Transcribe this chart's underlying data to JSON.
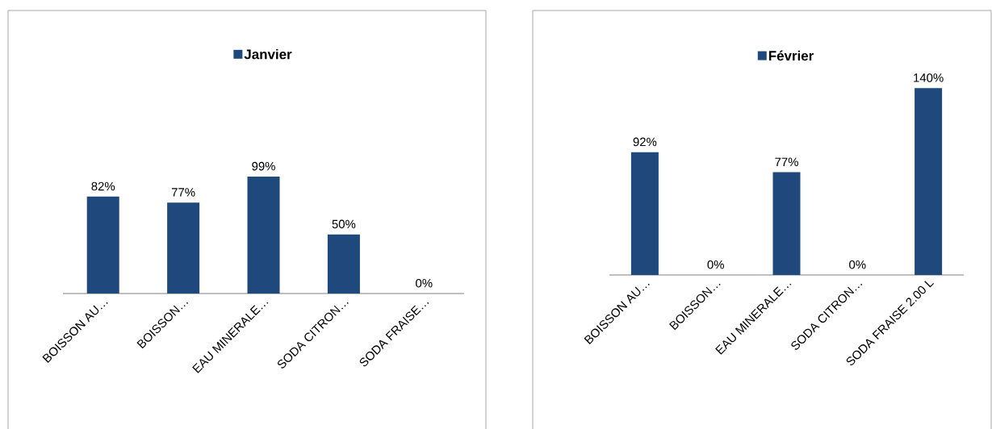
{
  "chart_data": [
    {
      "type": "bar",
      "categories": [
        "BOISSON AU…",
        "BOISSON…",
        "EAU MINERALE…",
        "SODA CITRON…",
        "SODA FRAISE…"
      ],
      "series": [
        {
          "name": "Janvier",
          "color": "#1f497d",
          "values": [
            82,
            77,
            99,
            50,
            0
          ],
          "value_labels": [
            "82%",
            "77%",
            "99%",
            "50%",
            "0%"
          ]
        }
      ],
      "legend": "top"
    },
    {
      "type": "bar",
      "categories": [
        "BOISSON AU…",
        "BOISSON…",
        "EAU MINERALE…",
        "SODA CITRON…",
        "SODA FRAISE 2.00 L"
      ],
      "series": [
        {
          "name": "Février",
          "color": "#1f497d",
          "values": [
            92,
            0,
            77,
            0,
            140
          ],
          "value_labels": [
            "92%",
            "0%",
            "77%",
            "0%",
            "140%"
          ]
        }
      ],
      "legend": "top"
    }
  ]
}
